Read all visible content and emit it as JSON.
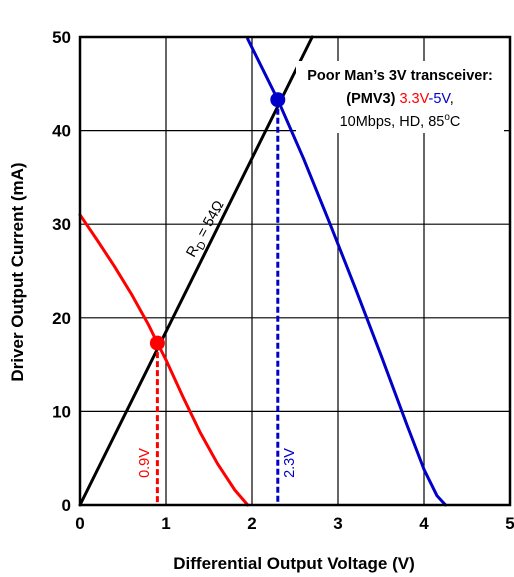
{
  "chart_data": {
    "type": "line",
    "title": "",
    "xlabel": "Differential Output Voltage (V)",
    "ylabel": "Driver Output Current (mA)",
    "xlim": [
      0,
      5
    ],
    "ylim": [
      0,
      50
    ],
    "xticks": [
      0,
      1,
      2,
      3,
      4,
      5
    ],
    "yticks": [
      0,
      10,
      20,
      30,
      40,
      50
    ],
    "grid": true,
    "series": [
      {
        "name": "3.3V",
        "color": "#ff0000",
        "x": [
          0,
          0.2,
          0.4,
          0.6,
          0.8,
          0.9,
          1.0,
          1.2,
          1.4,
          1.6,
          1.8,
          1.95
        ],
        "y": [
          31,
          28.3,
          25.5,
          22.5,
          19.2,
          17.3,
          15.5,
          11.5,
          7.7,
          4.4,
          1.6,
          0
        ]
      },
      {
        "name": "R_D = 54Ω",
        "color": "#000000",
        "x": [
          0,
          2.7
        ],
        "y": [
          0,
          50
        ]
      },
      {
        "name": "5V",
        "color": "#0000c8",
        "x": [
          1.95,
          2.3,
          2.6,
          2.9,
          3.2,
          3.5,
          3.8,
          4.0,
          4.15,
          4.25
        ],
        "y": [
          49.8,
          43.3,
          37.0,
          30.2,
          23.2,
          16.0,
          8.6,
          3.8,
          1.0,
          0
        ]
      }
    ],
    "operating_points": [
      {
        "x": 0.9,
        "y": 17.3,
        "color": "#ff0000",
        "label": "0.9V"
      },
      {
        "x": 2.3,
        "y": 43.3,
        "color": "#0000c8",
        "label": "2.3V"
      }
    ],
    "load_line_label": {
      "prefix": "R",
      "subscript": "D",
      "suffix": " = 54Ω"
    },
    "annotation": {
      "line1": "Poor Man’s 3V transceiver:",
      "line2_bold": "(PMV3)",
      "line2_red": "3.3V",
      "line2_dash": "-",
      "line2_blue": "5V",
      "line2_comma": ",",
      "line3_pre": "10Mbps, HD, 85",
      "line3_sup": "o",
      "line3_post": "C"
    }
  }
}
